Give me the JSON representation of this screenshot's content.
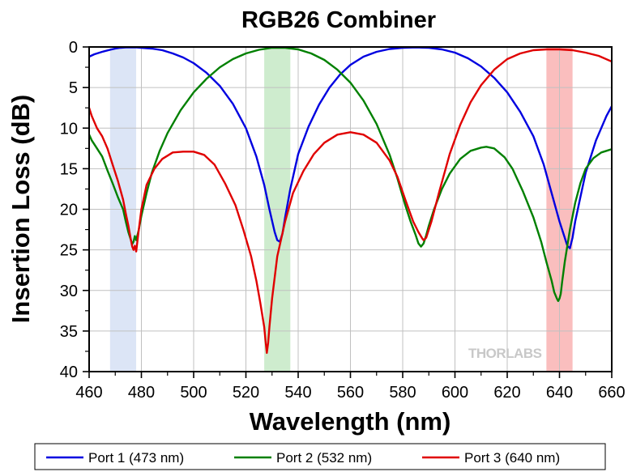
{
  "chart_data": {
    "type": "line",
    "title": "RGB26 Combiner",
    "xlabel": "Wavelength (nm)",
    "ylabel": "Insertion Loss (dB)",
    "xlim": [
      460,
      660
    ],
    "ylim": [
      0,
      40
    ],
    "y_inverted": true,
    "xticks": [
      460,
      480,
      500,
      520,
      540,
      560,
      580,
      600,
      620,
      640,
      660
    ],
    "yticks": [
      0,
      5,
      10,
      15,
      20,
      25,
      30,
      35,
      40
    ],
    "grid": true,
    "legend_position": "bottom",
    "watermark": "THORLABS",
    "bands": [
      {
        "from": 468,
        "to": 478,
        "color": "#d6e0f5"
      },
      {
        "from": 527,
        "to": 537,
        "color": "#c6e9c6"
      },
      {
        "from": 635,
        "to": 645,
        "color": "#f9b3b3"
      }
    ],
    "series": [
      {
        "name": "Port 1 (473 nm)",
        "color": "#0000e0",
        "x": [
          460,
          462,
          465,
          468,
          470,
          472,
          474,
          476,
          478,
          480,
          484,
          488,
          492,
          496,
          500,
          505,
          510,
          515,
          520,
          524,
          527,
          529,
          531,
          532,
          533,
          534,
          535,
          537,
          540,
          544,
          548,
          552,
          556,
          560,
          565,
          570,
          575,
          580,
          585,
          590,
          595,
          600,
          605,
          610,
          615,
          620,
          625,
          630,
          634,
          637,
          640,
          642,
          643,
          644,
          645,
          646,
          648,
          650,
          654,
          658,
          660
        ],
        "y": [
          1.2,
          0.9,
          0.6,
          0.35,
          0.2,
          0.1,
          0.05,
          0.05,
          0.05,
          0.1,
          0.2,
          0.4,
          0.8,
          1.3,
          2.0,
          3.2,
          4.8,
          7.0,
          10.0,
          13.5,
          17.0,
          20.0,
          22.8,
          23.8,
          24.0,
          23.0,
          21.0,
          17.5,
          13.2,
          9.8,
          7.1,
          5.0,
          3.4,
          2.2,
          1.2,
          0.6,
          0.25,
          0.1,
          0.05,
          0.1,
          0.3,
          0.7,
          1.4,
          2.4,
          3.8,
          5.6,
          8.0,
          11.0,
          14.5,
          18.0,
          21.5,
          23.5,
          24.5,
          24.8,
          23.5,
          21.5,
          18.5,
          15.5,
          11.5,
          8.5,
          7.3
        ]
      },
      {
        "name": "Port 2 (532 nm)",
        "color": "#008000",
        "x": [
          460,
          461,
          463,
          465,
          467,
          469,
          471,
          473,
          474,
          475,
          476,
          476.5,
          477,
          477.5,
          478,
          479,
          480,
          482,
          484,
          487,
          490,
          495,
          500,
          505,
          510,
          515,
          520,
          525,
          530,
          535,
          540,
          545,
          550,
          555,
          560,
          565,
          570,
          575,
          578,
          581,
          583,
          585,
          586,
          587,
          588,
          589,
          590,
          592,
          595,
          598,
          602,
          606,
          610,
          612,
          615,
          619,
          622,
          626,
          630,
          633,
          635,
          637,
          638,
          639,
          639.5,
          640,
          640.5,
          641,
          642,
          644,
          646,
          648,
          650,
          653,
          656,
          658,
          660
        ],
        "y": [
          10.8,
          11.5,
          12.5,
          13.5,
          15.2,
          16.8,
          18.5,
          20.0,
          21.5,
          22.8,
          23.8,
          24.3,
          24.0,
          23.3,
          23.8,
          22.5,
          20.8,
          18.0,
          15.5,
          12.8,
          10.6,
          7.8,
          5.6,
          3.9,
          2.5,
          1.5,
          0.8,
          0.35,
          0.1,
          0.1,
          0.3,
          0.8,
          1.6,
          2.8,
          4.4,
          6.6,
          9.5,
          13.3,
          16.2,
          19.5,
          21.5,
          23.2,
          24.2,
          24.6,
          24.2,
          23.2,
          22.0,
          20.0,
          17.5,
          15.6,
          13.8,
          12.8,
          12.4,
          12.3,
          12.5,
          13.6,
          15.0,
          17.8,
          21.0,
          24.0,
          26.5,
          28.8,
          30.2,
          31.0,
          31.3,
          31.0,
          30.4,
          29.0,
          26.5,
          22.5,
          19.2,
          16.8,
          15.0,
          13.7,
          13.0,
          12.8,
          12.6
        ]
      },
      {
        "name": "Port 3 (640 nm)",
        "color": "#e00000",
        "x": [
          460,
          461,
          463,
          465,
          467,
          469,
          471,
          473,
          474,
          475,
          476,
          476.5,
          477,
          477.5,
          478,
          479,
          480,
          482,
          485,
          488,
          492,
          496,
          500,
          504,
          508,
          512,
          516,
          519,
          522,
          524,
          525.5,
          527,
          527.5,
          528,
          528.5,
          529,
          530,
          532,
          535,
          538,
          542,
          546,
          550,
          555,
          560,
          565,
          570,
          575,
          578,
          581,
          584,
          586,
          587.5,
          588,
          589,
          591,
          594,
          598,
          602,
          606,
          610,
          615,
          620,
          625,
          630,
          635,
          640,
          645,
          650,
          655,
          660
        ],
        "y": [
          7.5,
          8.5,
          10.0,
          11.0,
          12.5,
          14.5,
          16.5,
          18.8,
          20.5,
          22.0,
          23.8,
          24.6,
          25.0,
          24.5,
          25.2,
          22.5,
          20.0,
          17.0,
          15.0,
          13.8,
          13.0,
          12.9,
          12.9,
          13.3,
          14.5,
          16.8,
          19.5,
          22.5,
          25.8,
          28.8,
          31.5,
          34.5,
          36.2,
          37.7,
          36.5,
          34.5,
          31.0,
          25.8,
          21.5,
          18.0,
          15.3,
          13.2,
          11.8,
          10.8,
          10.5,
          10.8,
          11.8,
          14.0,
          16.0,
          18.8,
          21.5,
          22.8,
          23.6,
          23.8,
          23.5,
          21.5,
          17.8,
          13.2,
          9.6,
          6.8,
          4.7,
          2.8,
          1.5,
          0.8,
          0.4,
          0.3,
          0.3,
          0.4,
          0.7,
          1.1,
          1.8
        ]
      }
    ]
  }
}
